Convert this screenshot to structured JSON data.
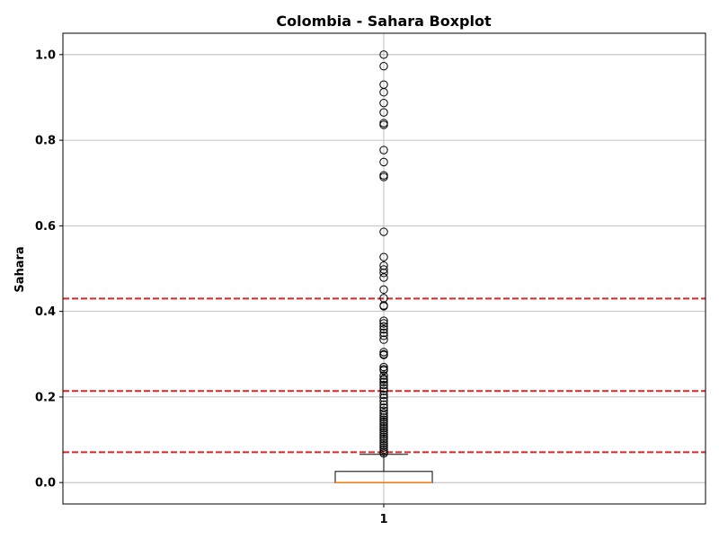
{
  "chart_data": {
    "type": "boxplot",
    "title": "Colombia - Sahara Boxplot",
    "xlabel": "",
    "ylabel": "Sahara",
    "categories": [
      "1"
    ],
    "ylim": [
      -0.05,
      1.05
    ],
    "yticks": [
      0.0,
      0.2,
      0.4,
      0.6,
      0.8,
      1.0
    ],
    "ytick_labels": [
      "0.0",
      "0.2",
      "0.4",
      "0.6",
      "0.8",
      "1.0"
    ],
    "grid": true,
    "box": {
      "category": "1",
      "whisker_low": 0.0,
      "q1": 0.0,
      "median": 0.0,
      "q3": 0.026,
      "whisker_high": 0.066
    },
    "outliers": [
      1.0,
      0.973,
      0.93,
      0.912,
      0.887,
      0.865,
      0.84,
      0.836,
      0.777,
      0.749,
      0.718,
      0.714,
      0.586,
      0.527,
      0.507,
      0.498,
      0.49,
      0.479,
      0.451,
      0.431,
      0.414,
      0.412,
      0.378,
      0.372,
      0.365,
      0.358,
      0.35,
      0.343,
      0.334,
      0.305,
      0.3,
      0.298,
      0.27,
      0.265,
      0.262,
      0.25,
      0.243,
      0.24,
      0.235,
      0.228,
      0.22,
      0.214,
      0.205,
      0.198,
      0.19,
      0.182,
      0.175,
      0.168,
      0.162,
      0.157,
      0.152,
      0.147,
      0.142,
      0.137,
      0.132,
      0.127,
      0.122,
      0.117,
      0.112,
      0.107,
      0.102,
      0.097,
      0.092,
      0.087,
      0.082,
      0.077,
      0.072,
      0.068
    ],
    "reference_lines": [
      {
        "value": 0.43,
        "color": "#d62728"
      },
      {
        "value": 0.214,
        "color": "#d62728"
      },
      {
        "value": 0.071,
        "color": "#d62728"
      }
    ],
    "colors": {
      "box": "#000000",
      "median": "#ff7f0e",
      "grid": "#b0b0b0",
      "reference": "#d62728"
    }
  }
}
